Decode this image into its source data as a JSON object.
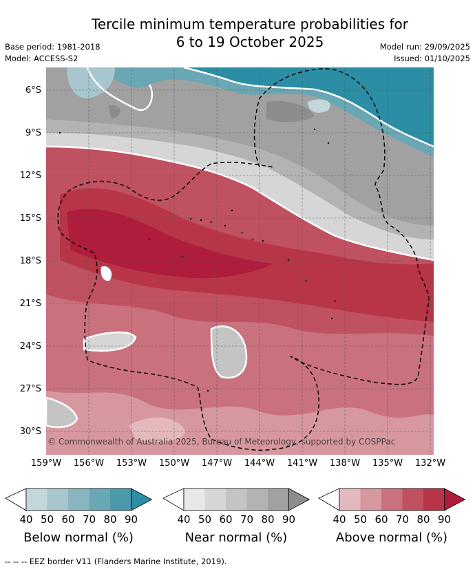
{
  "title_line1": "Tercile minimum temperature probabilities for",
  "title_line2": "6 to 19 October 2025",
  "base_period": "Base period: 1981-2018",
  "model": "Model: ACCESS-S2",
  "model_run": "Model run: 29/09/2025",
  "issued": "Issued: 01/10/2025",
  "copyright": "© Commonwealth of Australia 2025, Bureau of Meteorology, supported by COSPPac",
  "lat_labels": [
    "6°S",
    "9°S",
    "12°S",
    "15°S",
    "18°S",
    "21°S",
    "24°S",
    "27°S",
    "30°S"
  ],
  "lon_labels": [
    "159°W",
    "156°W",
    "153°W",
    "150°W",
    "147°W",
    "144°W",
    "141°W",
    "138°W",
    "135°W",
    "132°W"
  ],
  "colorbars": [
    {
      "label": "Below normal (%)",
      "ticks": [
        "40",
        "50",
        "60",
        "70",
        "80",
        "90"
      ],
      "colors": [
        "#ffffff",
        "#c3d6dc",
        "#a7c6ce",
        "#8ab6c1",
        "#6aa7b4",
        "#4a9aab",
        "#2b8ea4"
      ]
    },
    {
      "label": "Near normal (%)",
      "ticks": [
        "40",
        "50",
        "60",
        "70",
        "80",
        "90"
      ],
      "colors": [
        "#ffffff",
        "#e8e8e8",
        "#d6d6d6",
        "#c4c4c4",
        "#b3b3b3",
        "#a1a1a1",
        "#8c8c8c"
      ]
    },
    {
      "label": "Above normal (%)",
      "ticks": [
        "40",
        "50",
        "60",
        "70",
        "80",
        "90"
      ],
      "colors": [
        "#ffffff",
        "#e4b9be",
        "#d6979e",
        "#c9717d",
        "#c05161",
        "#b83548",
        "#b01c3c"
      ]
    }
  ],
  "footer": "--  --  -- EEZ border V11 (Flanders Marine Institute, 2019)."
}
